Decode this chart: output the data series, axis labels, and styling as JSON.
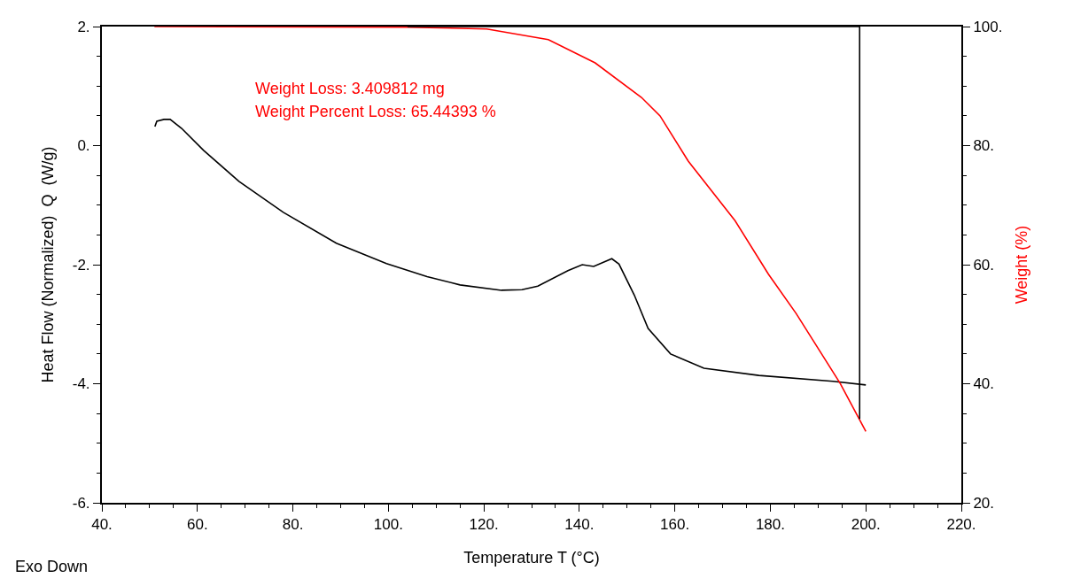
{
  "chart_data": {
    "type": "line",
    "xlabel": "Temperature T (°C)",
    "ylabel": "Heat Flow (Normalized)  Q  (W/g)",
    "y2label": "Weight (%)",
    "xlim": [
      40,
      220
    ],
    "xticks": [
      {
        "value": 40,
        "label": "40."
      },
      {
        "value": 60,
        "label": "60."
      },
      {
        "value": 80,
        "label": "80."
      },
      {
        "value": 100,
        "label": "100."
      },
      {
        "value": 120,
        "label": "120."
      },
      {
        "value": 140,
        "label": "140."
      },
      {
        "value": 160,
        "label": "160."
      },
      {
        "value": 180,
        "label": "180."
      },
      {
        "value": 200,
        "label": "200."
      },
      {
        "value": 220,
        "label": "220."
      }
    ],
    "ylim": [
      -6,
      2
    ],
    "yticks": [
      {
        "value": -6,
        "label": "-6."
      },
      {
        "value": -4,
        "label": "-4."
      },
      {
        "value": -2,
        "label": "-2."
      },
      {
        "value": 0,
        "label": "0."
      },
      {
        "value": 2,
        "label": "2."
      }
    ],
    "y2lim": [
      20,
      100
    ],
    "y2ticks": [
      {
        "value": 20,
        "label": "20."
      },
      {
        "value": 40,
        "label": "40."
      },
      {
        "value": 60,
        "label": "60."
      },
      {
        "value": 80,
        "label": "80."
      },
      {
        "value": 100,
        "label": "100."
      }
    ],
    "grid": false,
    "marker": "none",
    "line_style": "solid",
    "series": [
      {
        "color": "#000000",
        "x": [
          51.1,
          51.5,
          53.0,
          54.3,
          56.7,
          61.3,
          68.7,
          78.0,
          89.1,
          99.6,
          108.1,
          115.0,
          123.7,
          128.0,
          131.3,
          137.6,
          140.6,
          143.0,
          146.8,
          148.3,
          151.5,
          154.4,
          159.1,
          166.1,
          177.6,
          193.1,
          200.0
        ],
        "values": [
          0.32,
          0.41,
          0.44,
          0.44,
          0.29,
          -0.08,
          -0.6,
          -1.12,
          -1.64,
          -1.98,
          -2.2,
          -2.34,
          -2.43,
          -2.42,
          -2.36,
          -2.1,
          -2.0,
          -2.03,
          -1.9,
          -1.99,
          -2.51,
          -3.07,
          -3.5,
          -3.74,
          -3.86,
          -3.96,
          -4.02
        ]
      },
      {
        "color": "#ff0000",
        "axis": "y2",
        "x": [
          51,
          104,
          120.6,
          133.5,
          143.3,
          153.0,
          156.9,
          162.8,
          172.6,
          179.6,
          185.4,
          194.6,
          200.0
        ],
        "values": [
          100,
          99.9,
          99.6,
          97.8,
          93.9,
          88.1,
          85.0,
          77.4,
          67.4,
          58.4,
          51.8,
          40.1,
          32.0
        ]
      },
      {
        "color": "#000000",
        "axis": "y2",
        "x": [
          104,
          198.7,
          198.7
        ],
        "values": [
          100,
          100,
          34.1
        ]
      }
    ],
    "annotations": [
      "Weight Loss: 3.409812 mg",
      "Weight Percent Loss: 65.44393 %",
      "Exo Down"
    ]
  }
}
